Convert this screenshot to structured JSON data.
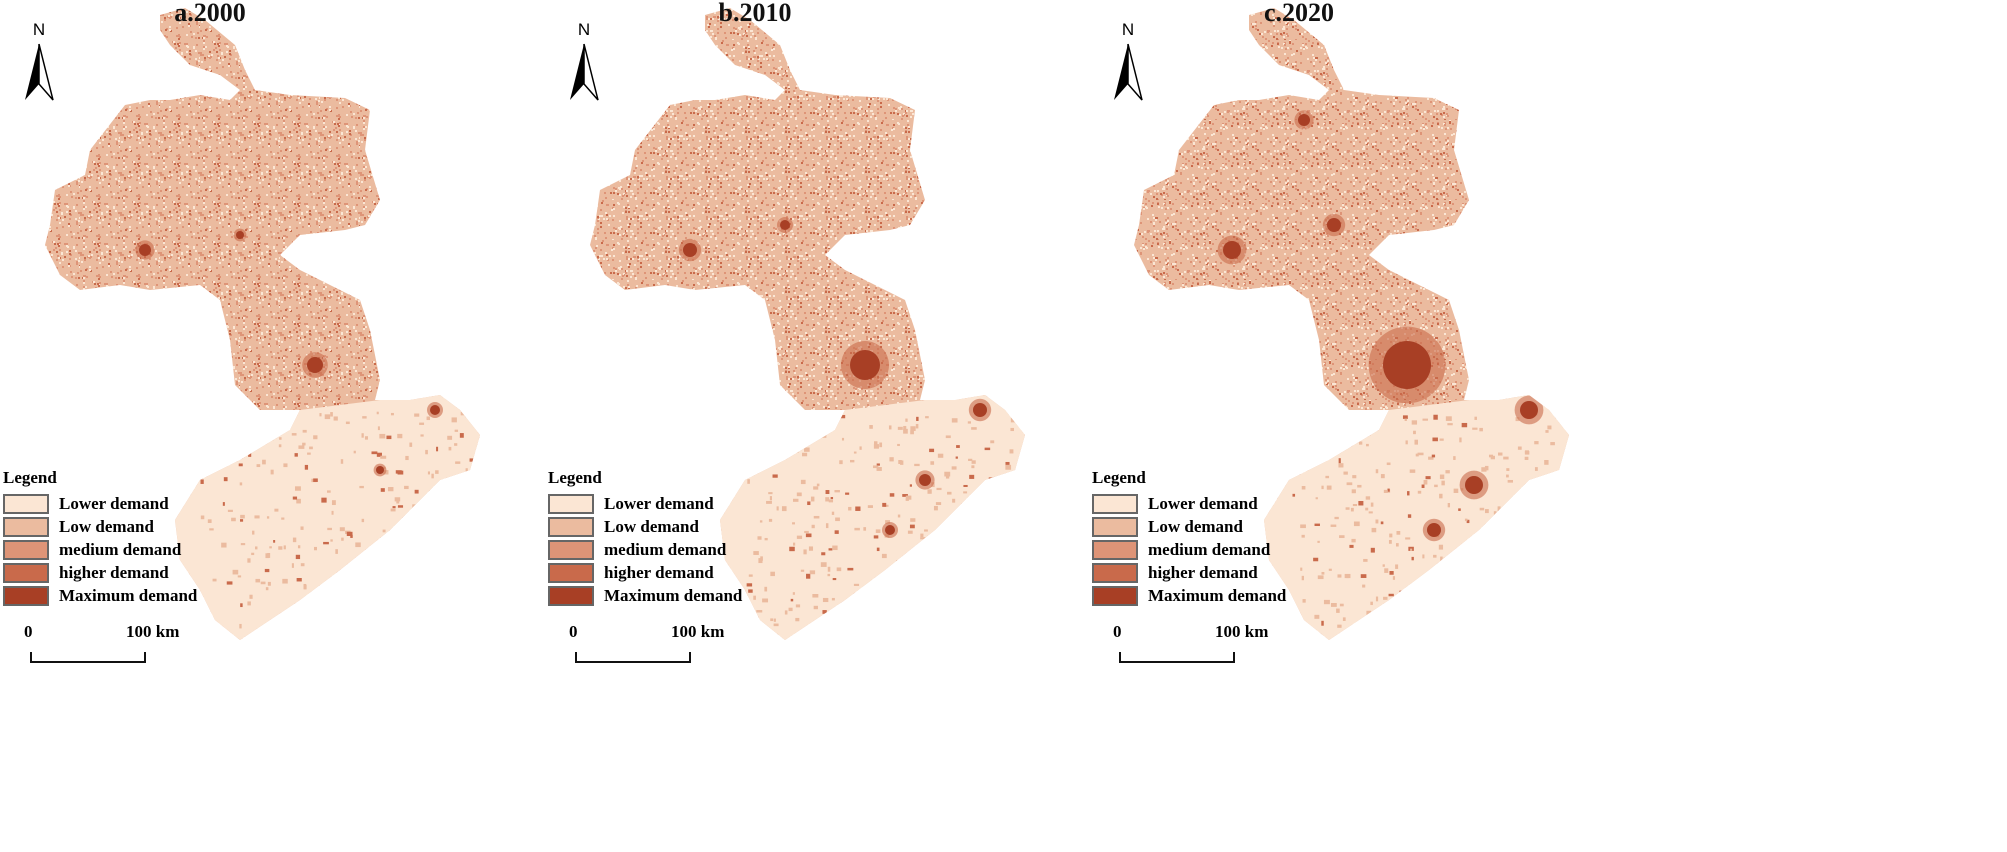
{
  "panels": [
    {
      "title": "a.2000"
    },
    {
      "title": "b.2010"
    },
    {
      "title": "c.2020"
    }
  ],
  "north_label": "N",
  "legend": {
    "title": "Legend",
    "items": [
      {
        "label": "Lower demand",
        "color": "#fbe6d4"
      },
      {
        "label": "Low demand",
        "color": "#ebbb9f"
      },
      {
        "label": "medium demand",
        "color": "#de9477"
      },
      {
        "label": "higher demand",
        "color": "#c96a4b"
      },
      {
        "label": "Maximum demand",
        "color": "#a83f25"
      }
    ]
  },
  "scale_bar": {
    "start": "0",
    "end": "100 km"
  }
}
